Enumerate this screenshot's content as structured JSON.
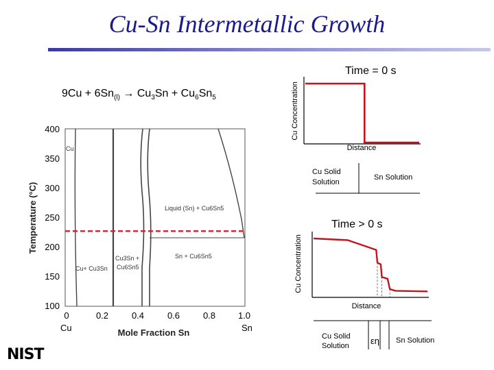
{
  "title": "Cu-Sn Intermetallic Growth",
  "reaction": {
    "lhs_cu": "9Cu + 6Sn",
    "lhs_sub": "(l)",
    "arrow": "→",
    "prod1": "Cu",
    "prod1_sub": "3",
    "prod1_tail": "Sn + Cu",
    "prod2_sub": "6",
    "prod2_tail": "Sn",
    "prod2_sub2": "5"
  },
  "phase_diagram": {
    "y_axis_label": "Temperature (°C)",
    "x_axis_label": "Mole Fraction Sn",
    "y_ticks": [
      "400",
      "350",
      "300",
      "250",
      "200",
      "150",
      "100"
    ],
    "x_ticks": [
      "0",
      "0.2",
      "0.4",
      "0.6",
      "0.8",
      "1.0"
    ],
    "x_end_left": "Cu",
    "x_end_right": "Sn",
    "region_cu": "Cu",
    "region_liquid": "Liquid (Sn) + Cu6Sn5",
    "region_cu_cu3sn": "Cu+ Cu3Sn",
    "region_cu3sn_cu6sn5_line1": "Cu3Sn +",
    "region_cu3sn_cu6sn5_line2": "Cu6Sn5",
    "region_sn_cu6sn5": "Sn + Cu6Sn5",
    "reaction_temperature_c": 227,
    "dash_color": "#d0202e"
  },
  "chart_data": [
    {
      "type": "line",
      "title": "Time = 0 s",
      "ylabel": "Cu Concentration",
      "xlabel": "Distance",
      "series": [
        {
          "name": "Cu concentration",
          "x": [
            0,
            0.52,
            0.52,
            1
          ],
          "y": [
            1,
            1,
            0,
            0
          ]
        }
      ],
      "regions": [
        "Cu Solid Solution",
        "Sn Solution"
      ],
      "line_color": "#c0141e"
    },
    {
      "type": "line",
      "title": "Time > 0 s",
      "ylabel": "Cu Concentration",
      "xlabel": "Distance",
      "series": [
        {
          "name": "Cu concentration",
          "x": [
            0,
            0.3,
            0.55,
            0.56,
            0.59,
            0.6,
            0.65,
            0.67,
            0.72,
            1
          ],
          "y": [
            1,
            0.97,
            0.8,
            0.58,
            0.55,
            0.33,
            0.3,
            0.12,
            0.09,
            0.08
          ]
        }
      ],
      "regions": [
        "Cu Solid Solution",
        "εη",
        "Sn Solution"
      ],
      "line_color": "#c0141e"
    }
  ],
  "logo": "NIST"
}
